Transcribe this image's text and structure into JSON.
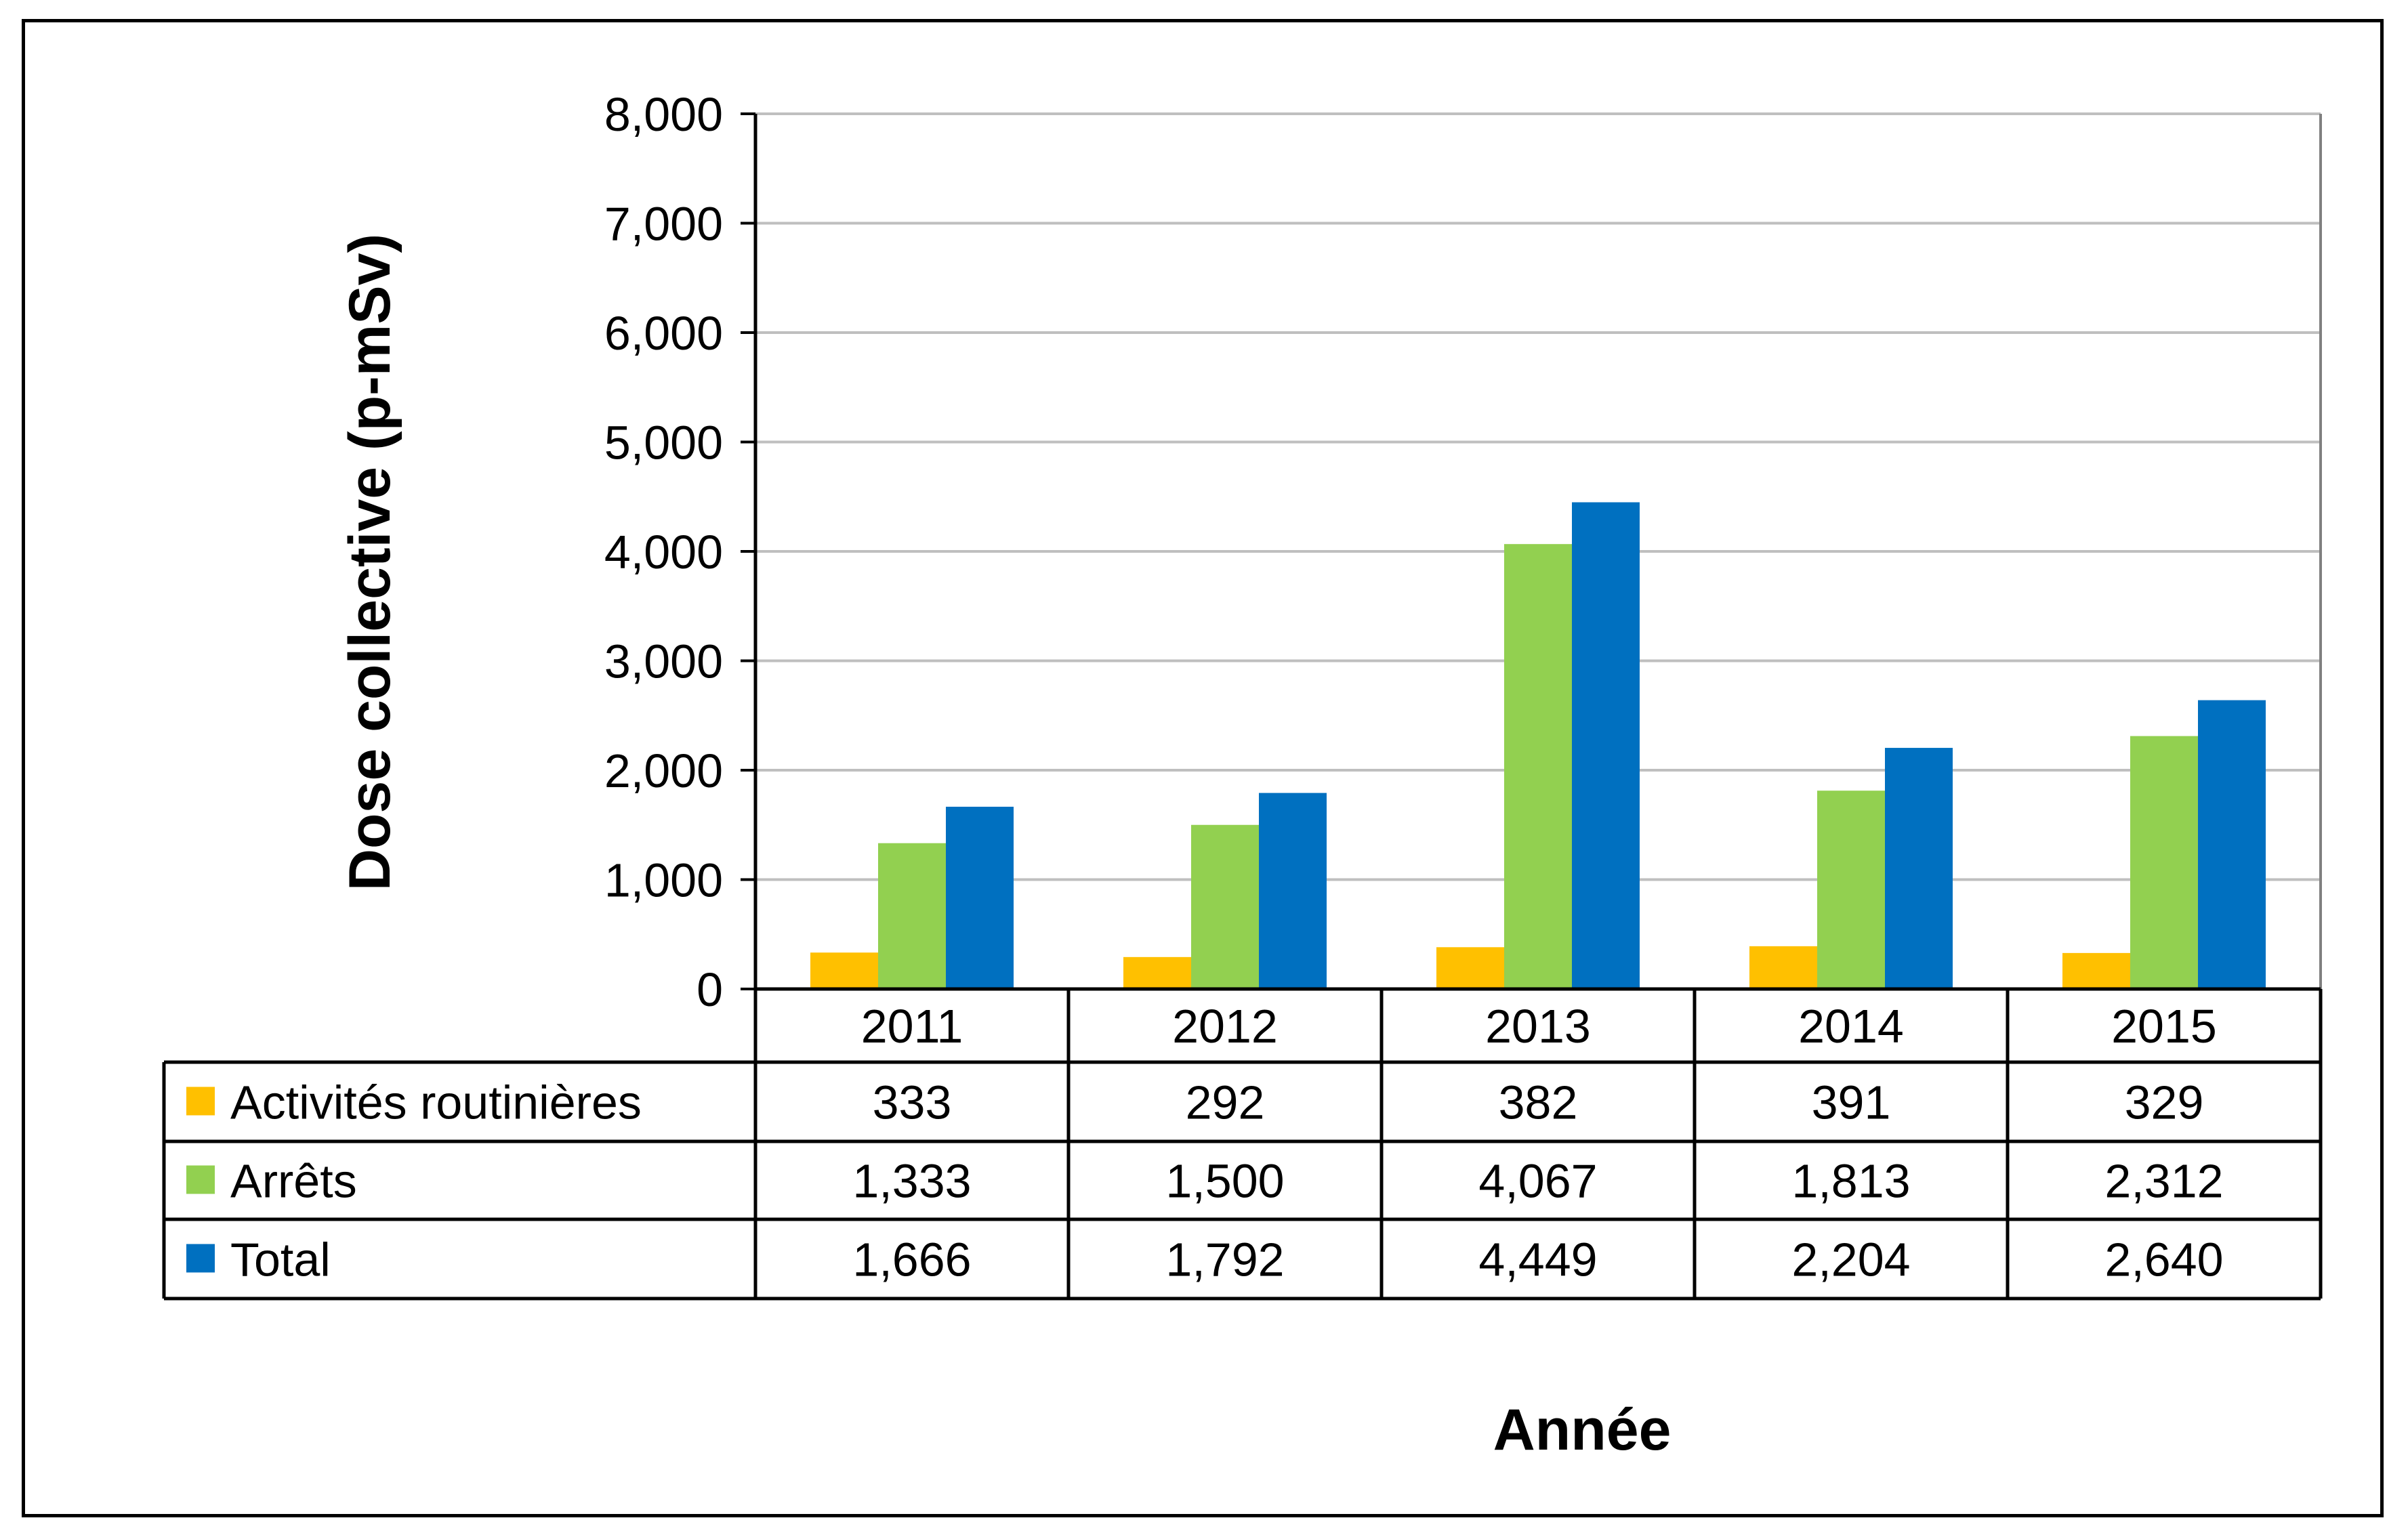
{
  "chart_data": {
    "type": "bar",
    "title": "",
    "xlabel": "Année",
    "ylabel": "Dose collective (p-mSv)",
    "ylim": [
      0,
      8000
    ],
    "yticks": [
      0,
      1000,
      2000,
      3000,
      4000,
      5000,
      6000,
      7000,
      8000
    ],
    "ytick_labels": [
      "0",
      "1,000",
      "2,000",
      "3,000",
      "4,000",
      "5,000",
      "6,000",
      "7,000",
      "8,000"
    ],
    "grid": true,
    "legend": "data-table",
    "categories": [
      "2011",
      "2012",
      "2013",
      "2014",
      "2015"
    ],
    "series": [
      {
        "name": "Activités routinières",
        "color": "#FFC000",
        "values": [
          333,
          292,
          382,
          391,
          329
        ],
        "labels": [
          "333",
          "292",
          "382",
          "391",
          "329"
        ]
      },
      {
        "name": "Arrêts",
        "color": "#92D050",
        "values": [
          1333,
          1500,
          4067,
          1813,
          2312
        ],
        "labels": [
          "1,333",
          "1,500",
          "4,067",
          "1,813",
          "2,312"
        ]
      },
      {
        "name": "Total",
        "color": "#0070C0",
        "values": [
          1666,
          1792,
          4449,
          2204,
          2640
        ],
        "labels": [
          "1,666",
          "1,792",
          "4,449",
          "2,204",
          "2,640"
        ]
      }
    ]
  }
}
